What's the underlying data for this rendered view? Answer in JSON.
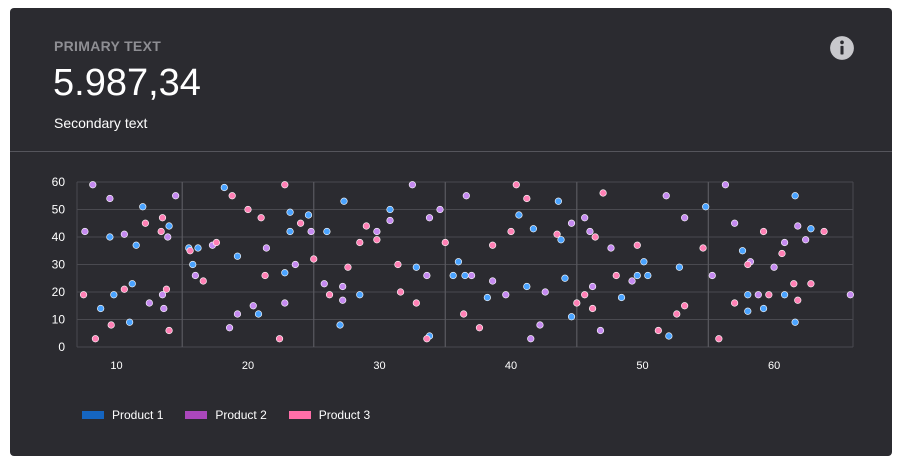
{
  "header": {
    "primary_label": "PRIMARY TEXT",
    "value": "5.987,34",
    "secondary_label": "Secondary text",
    "info_icon": "info-icon"
  },
  "colors": {
    "card_bg": "#2b2b30",
    "product1": "#4aa3ff",
    "product2": "#c58af0",
    "product3": "#ff80b5",
    "grid": "#4a4a50"
  },
  "chart_data": {
    "type": "scatter",
    "xlim": [
      7,
      66
    ],
    "ylim": [
      0,
      60
    ],
    "x_ticks": [
      10,
      20,
      30,
      40,
      50,
      60
    ],
    "y_ticks": [
      0,
      10,
      20,
      30,
      40,
      50,
      60
    ],
    "legend_position": "bottom-left",
    "grid": true,
    "series": [
      {
        "name": "Product 1",
        "legend_color": "#1565c0",
        "color": "#4aa3ff",
        "points": [
          [
            8.8,
            14
          ],
          [
            9.5,
            40
          ],
          [
            9.8,
            19
          ],
          [
            11.0,
            9
          ],
          [
            11.2,
            23
          ],
          [
            11.5,
            37
          ],
          [
            12.0,
            51
          ],
          [
            14.0,
            44
          ],
          [
            15.5,
            36
          ],
          [
            15.8,
            30
          ],
          [
            16.2,
            36
          ],
          [
            18.2,
            58
          ],
          [
            19.2,
            33
          ],
          [
            20.8,
            12
          ],
          [
            22.8,
            27
          ],
          [
            23.2,
            42
          ],
          [
            23.2,
            49
          ],
          [
            24.6,
            48
          ],
          [
            26.0,
            42
          ],
          [
            27.0,
            8
          ],
          [
            27.3,
            53
          ],
          [
            28.5,
            19
          ],
          [
            30.8,
            50
          ],
          [
            32.8,
            29
          ],
          [
            33.8,
            4
          ],
          [
            35.6,
            26
          ],
          [
            36.0,
            31
          ],
          [
            36.5,
            26
          ],
          [
            38.2,
            18
          ],
          [
            40.6,
            48
          ],
          [
            41.2,
            22
          ],
          [
            41.7,
            43
          ],
          [
            43.6,
            53
          ],
          [
            43.8,
            39
          ],
          [
            44.1,
            25
          ],
          [
            44.6,
            11
          ],
          [
            48.4,
            18
          ],
          [
            49.6,
            26
          ],
          [
            50.1,
            31
          ],
          [
            50.4,
            26
          ],
          [
            52.0,
            4
          ],
          [
            52.8,
            29
          ],
          [
            54.8,
            51
          ],
          [
            57.6,
            35
          ],
          [
            58.0,
            19
          ],
          [
            58.0,
            13
          ],
          [
            59.2,
            14
          ],
          [
            60.8,
            19
          ],
          [
            61.6,
            9
          ],
          [
            61.6,
            55
          ],
          [
            62.8,
            43
          ]
        ]
      },
      {
        "name": "Product 2",
        "legend_color": "#ab47bc",
        "color": "#c58af0",
        "points": [
          [
            7.6,
            42
          ],
          [
            8.2,
            59
          ],
          [
            9.5,
            54
          ],
          [
            10.6,
            41
          ],
          [
            12.5,
            16
          ],
          [
            13.5,
            19
          ],
          [
            13.6,
            14
          ],
          [
            13.9,
            40
          ],
          [
            14.5,
            55
          ],
          [
            16.0,
            26
          ],
          [
            17.3,
            37
          ],
          [
            18.6,
            7
          ],
          [
            19.2,
            12
          ],
          [
            20.4,
            15
          ],
          [
            21.4,
            36
          ],
          [
            22.8,
            16
          ],
          [
            23.6,
            30
          ],
          [
            24.8,
            42
          ],
          [
            25.8,
            23
          ],
          [
            27.2,
            17
          ],
          [
            27.2,
            22
          ],
          [
            29.8,
            42
          ],
          [
            30.8,
            46
          ],
          [
            32.5,
            59
          ],
          [
            33.6,
            26
          ],
          [
            33.8,
            47
          ],
          [
            34.6,
            50
          ],
          [
            36.6,
            55
          ],
          [
            37.0,
            26
          ],
          [
            38.6,
            24
          ],
          [
            39.6,
            19
          ],
          [
            41.5,
            3
          ],
          [
            42.2,
            8
          ],
          [
            42.6,
            20
          ],
          [
            44.6,
            45
          ],
          [
            45.6,
            47
          ],
          [
            46.0,
            42
          ],
          [
            46.2,
            22
          ],
          [
            46.8,
            6
          ],
          [
            47.6,
            36
          ],
          [
            49.2,
            24
          ],
          [
            51.8,
            55
          ],
          [
            53.2,
            47
          ],
          [
            55.3,
            26
          ],
          [
            56.3,
            59
          ],
          [
            57.0,
            45
          ],
          [
            58.2,
            31
          ],
          [
            58.8,
            19
          ],
          [
            60.0,
            29
          ],
          [
            60.8,
            38
          ],
          [
            61.8,
            44
          ],
          [
            62.4,
            39
          ],
          [
            65.8,
            19
          ]
        ]
      },
      {
        "name": "Product 3",
        "legend_color": "#ff6ea8",
        "color": "#ff80b5",
        "points": [
          [
            7.5,
            19
          ],
          [
            8.4,
            3
          ],
          [
            9.6,
            8
          ],
          [
            10.6,
            21
          ],
          [
            12.2,
            45
          ],
          [
            13.4,
            42
          ],
          [
            13.5,
            47
          ],
          [
            13.8,
            21
          ],
          [
            14.0,
            6
          ],
          [
            15.6,
            35
          ],
          [
            16.6,
            24
          ],
          [
            17.6,
            38
          ],
          [
            18.8,
            55
          ],
          [
            20.0,
            50
          ],
          [
            21.0,
            47
          ],
          [
            21.3,
            26
          ],
          [
            22.4,
            3
          ],
          [
            22.8,
            59
          ],
          [
            24.0,
            45
          ],
          [
            25.0,
            32
          ],
          [
            26.2,
            19
          ],
          [
            27.6,
            29
          ],
          [
            28.5,
            38
          ],
          [
            29.0,
            44
          ],
          [
            29.8,
            39
          ],
          [
            31.4,
            30
          ],
          [
            31.6,
            20
          ],
          [
            32.8,
            16
          ],
          [
            33.6,
            3
          ],
          [
            35.0,
            38
          ],
          [
            36.4,
            12
          ],
          [
            37.6,
            7
          ],
          [
            38.6,
            37
          ],
          [
            40.0,
            42
          ],
          [
            40.4,
            59
          ],
          [
            41.2,
            54
          ],
          [
            43.5,
            41
          ],
          [
            45.0,
            16
          ],
          [
            45.6,
            19
          ],
          [
            46.2,
            14
          ],
          [
            46.4,
            40
          ],
          [
            47.0,
            56
          ],
          [
            48.0,
            26
          ],
          [
            49.6,
            37
          ],
          [
            51.2,
            6
          ],
          [
            52.6,
            12
          ],
          [
            53.2,
            15
          ],
          [
            54.6,
            36
          ],
          [
            55.8,
            3
          ],
          [
            57.0,
            16
          ],
          [
            58.0,
            30
          ],
          [
            59.2,
            42
          ],
          [
            59.6,
            19
          ],
          [
            60.6,
            34
          ],
          [
            61.5,
            23
          ],
          [
            61.8,
            17
          ],
          [
            62.8,
            23
          ],
          [
            63.8,
            42
          ]
        ]
      }
    ]
  }
}
